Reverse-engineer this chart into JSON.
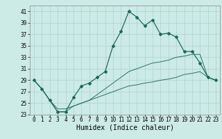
{
  "xlabel": "Humidex (Indice chaleur)",
  "bg_color": "#cceae6",
  "grid_color": "#aad4d0",
  "line_color": "#1a6b5a",
  "xlim": [
    -0.5,
    23.5
  ],
  "ylim": [
    23,
    42
  ],
  "yticks": [
    23,
    25,
    27,
    29,
    31,
    33,
    35,
    37,
    39,
    41
  ],
  "xticks": [
    0,
    1,
    2,
    3,
    4,
    5,
    6,
    7,
    8,
    9,
    10,
    11,
    12,
    13,
    14,
    15,
    16,
    17,
    18,
    19,
    20,
    21,
    22,
    23
  ],
  "main_line": [
    29,
    27.5,
    25.5,
    23.5,
    23.5,
    26.0,
    28.0,
    28.5,
    29.5,
    30.5,
    35.0,
    37.5,
    41.0,
    40.0,
    38.5,
    39.5,
    37.0,
    37.2,
    36.5,
    34.0,
    34.0,
    32.0,
    29.5,
    29.0
  ],
  "lower_line": [
    29,
    27.5,
    25.5,
    24.0,
    24.0,
    24.5,
    25.0,
    25.5,
    26.0,
    26.5,
    27.0,
    27.5,
    28.0,
    28.2,
    28.5,
    28.7,
    29.0,
    29.2,
    29.5,
    30.0,
    30.2,
    30.5,
    29.5,
    29.0
  ],
  "upper_line": [
    29,
    27.5,
    25.5,
    23.5,
    23.5,
    24.5,
    25.0,
    25.5,
    26.5,
    27.5,
    28.5,
    29.5,
    30.5,
    31.0,
    31.5,
    32.0,
    32.2,
    32.5,
    33.0,
    33.2,
    33.5,
    33.5,
    29.5,
    29.0
  ],
  "tick_font_size": 5.5,
  "label_font_size": 7.0
}
